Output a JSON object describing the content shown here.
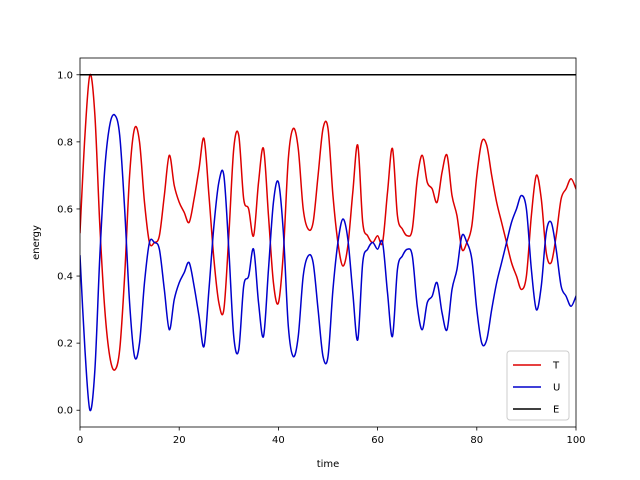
{
  "chart_data": {
    "type": "line",
    "xlabel": "time",
    "ylabel": "energy",
    "xlim": [
      0,
      100
    ],
    "ylim": [
      -0.05,
      1.05
    ],
    "xticks": [
      0,
      20,
      40,
      60,
      80,
      100
    ],
    "yticks": [
      0.0,
      0.2,
      0.4,
      0.6,
      0.8,
      1.0
    ],
    "xtick_labels": [
      "0",
      "20",
      "40",
      "60",
      "80",
      "100"
    ],
    "ytick_labels": [
      "0.0",
      "0.2",
      "0.4",
      "0.6",
      "0.8",
      "1.0"
    ],
    "grid": false,
    "legend_position": "lower-right",
    "series": [
      {
        "name": "T",
        "color": "#dd0000",
        "points": [
          [
            0,
            0.53
          ],
          [
            1,
            0.82
          ],
          [
            2,
            1.0
          ],
          [
            3,
            0.88
          ],
          [
            4,
            0.55
          ],
          [
            5,
            0.3
          ],
          [
            6,
            0.16
          ],
          [
            7,
            0.12
          ],
          [
            8,
            0.18
          ],
          [
            9,
            0.4
          ],
          [
            10,
            0.7
          ],
          [
            11,
            0.84
          ],
          [
            12,
            0.8
          ],
          [
            13,
            0.62
          ],
          [
            14,
            0.5
          ],
          [
            15,
            0.5
          ],
          [
            16,
            0.52
          ],
          [
            17,
            0.64
          ],
          [
            18,
            0.76
          ],
          [
            19,
            0.67
          ],
          [
            20,
            0.62
          ],
          [
            21,
            0.59
          ],
          [
            22,
            0.56
          ],
          [
            23,
            0.63
          ],
          [
            24,
            0.72
          ],
          [
            25,
            0.81
          ],
          [
            26,
            0.64
          ],
          [
            27,
            0.45
          ],
          [
            28,
            0.32
          ],
          [
            29,
            0.3
          ],
          [
            30,
            0.52
          ],
          [
            31,
            0.78
          ],
          [
            32,
            0.82
          ],
          [
            33,
            0.63
          ],
          [
            34,
            0.6
          ],
          [
            35,
            0.52
          ],
          [
            36,
            0.68
          ],
          [
            37,
            0.78
          ],
          [
            38,
            0.58
          ],
          [
            39,
            0.38
          ],
          [
            40,
            0.32
          ],
          [
            41,
            0.47
          ],
          [
            42,
            0.75
          ],
          [
            43,
            0.84
          ],
          [
            44,
            0.78
          ],
          [
            45,
            0.6
          ],
          [
            46,
            0.54
          ],
          [
            47,
            0.56
          ],
          [
            48,
            0.7
          ],
          [
            49,
            0.84
          ],
          [
            50,
            0.84
          ],
          [
            51,
            0.64
          ],
          [
            52,
            0.5
          ],
          [
            53,
            0.43
          ],
          [
            54,
            0.49
          ],
          [
            55,
            0.65
          ],
          [
            56,
            0.79
          ],
          [
            57,
            0.56
          ],
          [
            58,
            0.52
          ],
          [
            59,
            0.5
          ],
          [
            60,
            0.52
          ],
          [
            61,
            0.5
          ],
          [
            62,
            0.65
          ],
          [
            63,
            0.78
          ],
          [
            64,
            0.58
          ],
          [
            65,
            0.54
          ],
          [
            66,
            0.52
          ],
          [
            67,
            0.54
          ],
          [
            68,
            0.69
          ],
          [
            69,
            0.76
          ],
          [
            70,
            0.68
          ],
          [
            71,
            0.66
          ],
          [
            72,
            0.62
          ],
          [
            73,
            0.71
          ],
          [
            74,
            0.76
          ],
          [
            75,
            0.64
          ],
          [
            76,
            0.58
          ],
          [
            77,
            0.48
          ],
          [
            78,
            0.5
          ],
          [
            79,
            0.55
          ],
          [
            80,
            0.7
          ],
          [
            81,
            0.8
          ],
          [
            82,
            0.79
          ],
          [
            83,
            0.7
          ],
          [
            84,
            0.62
          ],
          [
            85,
            0.56
          ],
          [
            86,
            0.5
          ],
          [
            87,
            0.44
          ],
          [
            88,
            0.4
          ],
          [
            89,
            0.36
          ],
          [
            90,
            0.4
          ],
          [
            91,
            0.58
          ],
          [
            92,
            0.7
          ],
          [
            93,
            0.63
          ],
          [
            94,
            0.47
          ],
          [
            95,
            0.44
          ],
          [
            96,
            0.52
          ],
          [
            97,
            0.63
          ],
          [
            98,
            0.66
          ],
          [
            99,
            0.69
          ],
          [
            100,
            0.66
          ]
        ]
      },
      {
        "name": "U",
        "color": "#0000cc",
        "points": [
          [
            0,
            0.46
          ],
          [
            1,
            0.18
          ],
          [
            2,
            0.0
          ],
          [
            3,
            0.12
          ],
          [
            4,
            0.46
          ],
          [
            5,
            0.72
          ],
          [
            6,
            0.85
          ],
          [
            7,
            0.88
          ],
          [
            8,
            0.82
          ],
          [
            9,
            0.6
          ],
          [
            10,
            0.32
          ],
          [
            11,
            0.16
          ],
          [
            12,
            0.2
          ],
          [
            13,
            0.38
          ],
          [
            14,
            0.5
          ],
          [
            15,
            0.5
          ],
          [
            16,
            0.48
          ],
          [
            17,
            0.36
          ],
          [
            18,
            0.24
          ],
          [
            19,
            0.33
          ],
          [
            20,
            0.38
          ],
          [
            21,
            0.41
          ],
          [
            22,
            0.44
          ],
          [
            23,
            0.37
          ],
          [
            24,
            0.28
          ],
          [
            25,
            0.19
          ],
          [
            26,
            0.36
          ],
          [
            27,
            0.55
          ],
          [
            28,
            0.68
          ],
          [
            29,
            0.7
          ],
          [
            30,
            0.48
          ],
          [
            31,
            0.22
          ],
          [
            32,
            0.18
          ],
          [
            33,
            0.37
          ],
          [
            34,
            0.4
          ],
          [
            35,
            0.48
          ],
          [
            36,
            0.32
          ],
          [
            37,
            0.22
          ],
          [
            38,
            0.42
          ],
          [
            39,
            0.62
          ],
          [
            40,
            0.68
          ],
          [
            41,
            0.53
          ],
          [
            42,
            0.25
          ],
          [
            43,
            0.16
          ],
          [
            44,
            0.22
          ],
          [
            45,
            0.4
          ],
          [
            46,
            0.46
          ],
          [
            47,
            0.44
          ],
          [
            48,
            0.3
          ],
          [
            49,
            0.16
          ],
          [
            50,
            0.16
          ],
          [
            51,
            0.36
          ],
          [
            52,
            0.5
          ],
          [
            53,
            0.57
          ],
          [
            54,
            0.51
          ],
          [
            55,
            0.35
          ],
          [
            56,
            0.21
          ],
          [
            57,
            0.44
          ],
          [
            58,
            0.48
          ],
          [
            59,
            0.5
          ],
          [
            60,
            0.48
          ],
          [
            61,
            0.5
          ],
          [
            62,
            0.35
          ],
          [
            63,
            0.22
          ],
          [
            64,
            0.42
          ],
          [
            65,
            0.46
          ],
          [
            66,
            0.48
          ],
          [
            67,
            0.46
          ],
          [
            68,
            0.31
          ],
          [
            69,
            0.24
          ],
          [
            70,
            0.32
          ],
          [
            71,
            0.34
          ],
          [
            72,
            0.38
          ],
          [
            73,
            0.29
          ],
          [
            74,
            0.24
          ],
          [
            75,
            0.36
          ],
          [
            76,
            0.42
          ],
          [
            77,
            0.52
          ],
          [
            78,
            0.5
          ],
          [
            79,
            0.45
          ],
          [
            80,
            0.3
          ],
          [
            81,
            0.2
          ],
          [
            82,
            0.21
          ],
          [
            83,
            0.3
          ],
          [
            84,
            0.38
          ],
          [
            85,
            0.44
          ],
          [
            86,
            0.5
          ],
          [
            87,
            0.56
          ],
          [
            88,
            0.6
          ],
          [
            89,
            0.64
          ],
          [
            90,
            0.6
          ],
          [
            91,
            0.42
          ],
          [
            92,
            0.3
          ],
          [
            93,
            0.37
          ],
          [
            94,
            0.53
          ],
          [
            95,
            0.56
          ],
          [
            96,
            0.48
          ],
          [
            97,
            0.37
          ],
          [
            98,
            0.34
          ],
          [
            99,
            0.31
          ],
          [
            100,
            0.34
          ]
        ]
      },
      {
        "name": "E",
        "color": "#000000",
        "points": [
          [
            0,
            1.0
          ],
          [
            100,
            1.0
          ]
        ]
      }
    ]
  }
}
